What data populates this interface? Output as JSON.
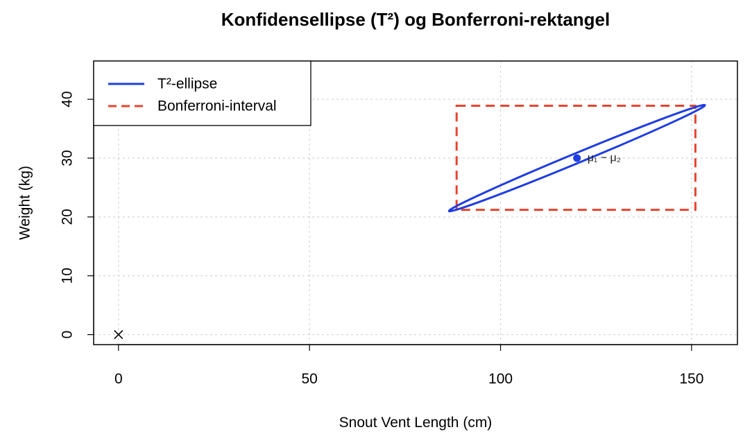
{
  "chart_data": {
    "type": "scatter",
    "title": "Konfidensellipse (T²) og Bonferroni-rektangel",
    "xlabel": "Snout Vent Length (cm)",
    "ylabel": "Weight (kg)",
    "xlim": [
      -6.5,
      162
    ],
    "ylim": [
      -1.7,
      46.5
    ],
    "xticks": [
      0,
      50,
      100,
      150
    ],
    "yticks": [
      0,
      10,
      20,
      30,
      40
    ],
    "grid": true,
    "legend": {
      "position": "top-left",
      "entries": [
        {
          "label": "T²-ellipse",
          "color": "#1f3de0",
          "style": "solid"
        },
        {
          "label": "Bonferroni-interval",
          "color": "#e8432e",
          "style": "dashed"
        }
      ]
    },
    "ellipse": {
      "center": [
        120,
        30
      ],
      "major_endpoints": [
        [
          86.5,
          21.0
        ],
        [
          153.5,
          39.0
        ]
      ],
      "minor_half_width": 1.3,
      "color": "#1f3de0"
    },
    "bonferroni_rect": {
      "x": [
        88.5,
        151
      ],
      "y": [
        21.2,
        38.9
      ],
      "color": "#e8432e"
    },
    "points": [
      {
        "x": 120,
        "y": 30,
        "label": "μ₁ − μ₂",
        "color": "#1f3de0",
        "marker": "dot"
      },
      {
        "x": 0,
        "y": 0,
        "label": "",
        "color": "#000000",
        "marker": "cross"
      }
    ]
  }
}
